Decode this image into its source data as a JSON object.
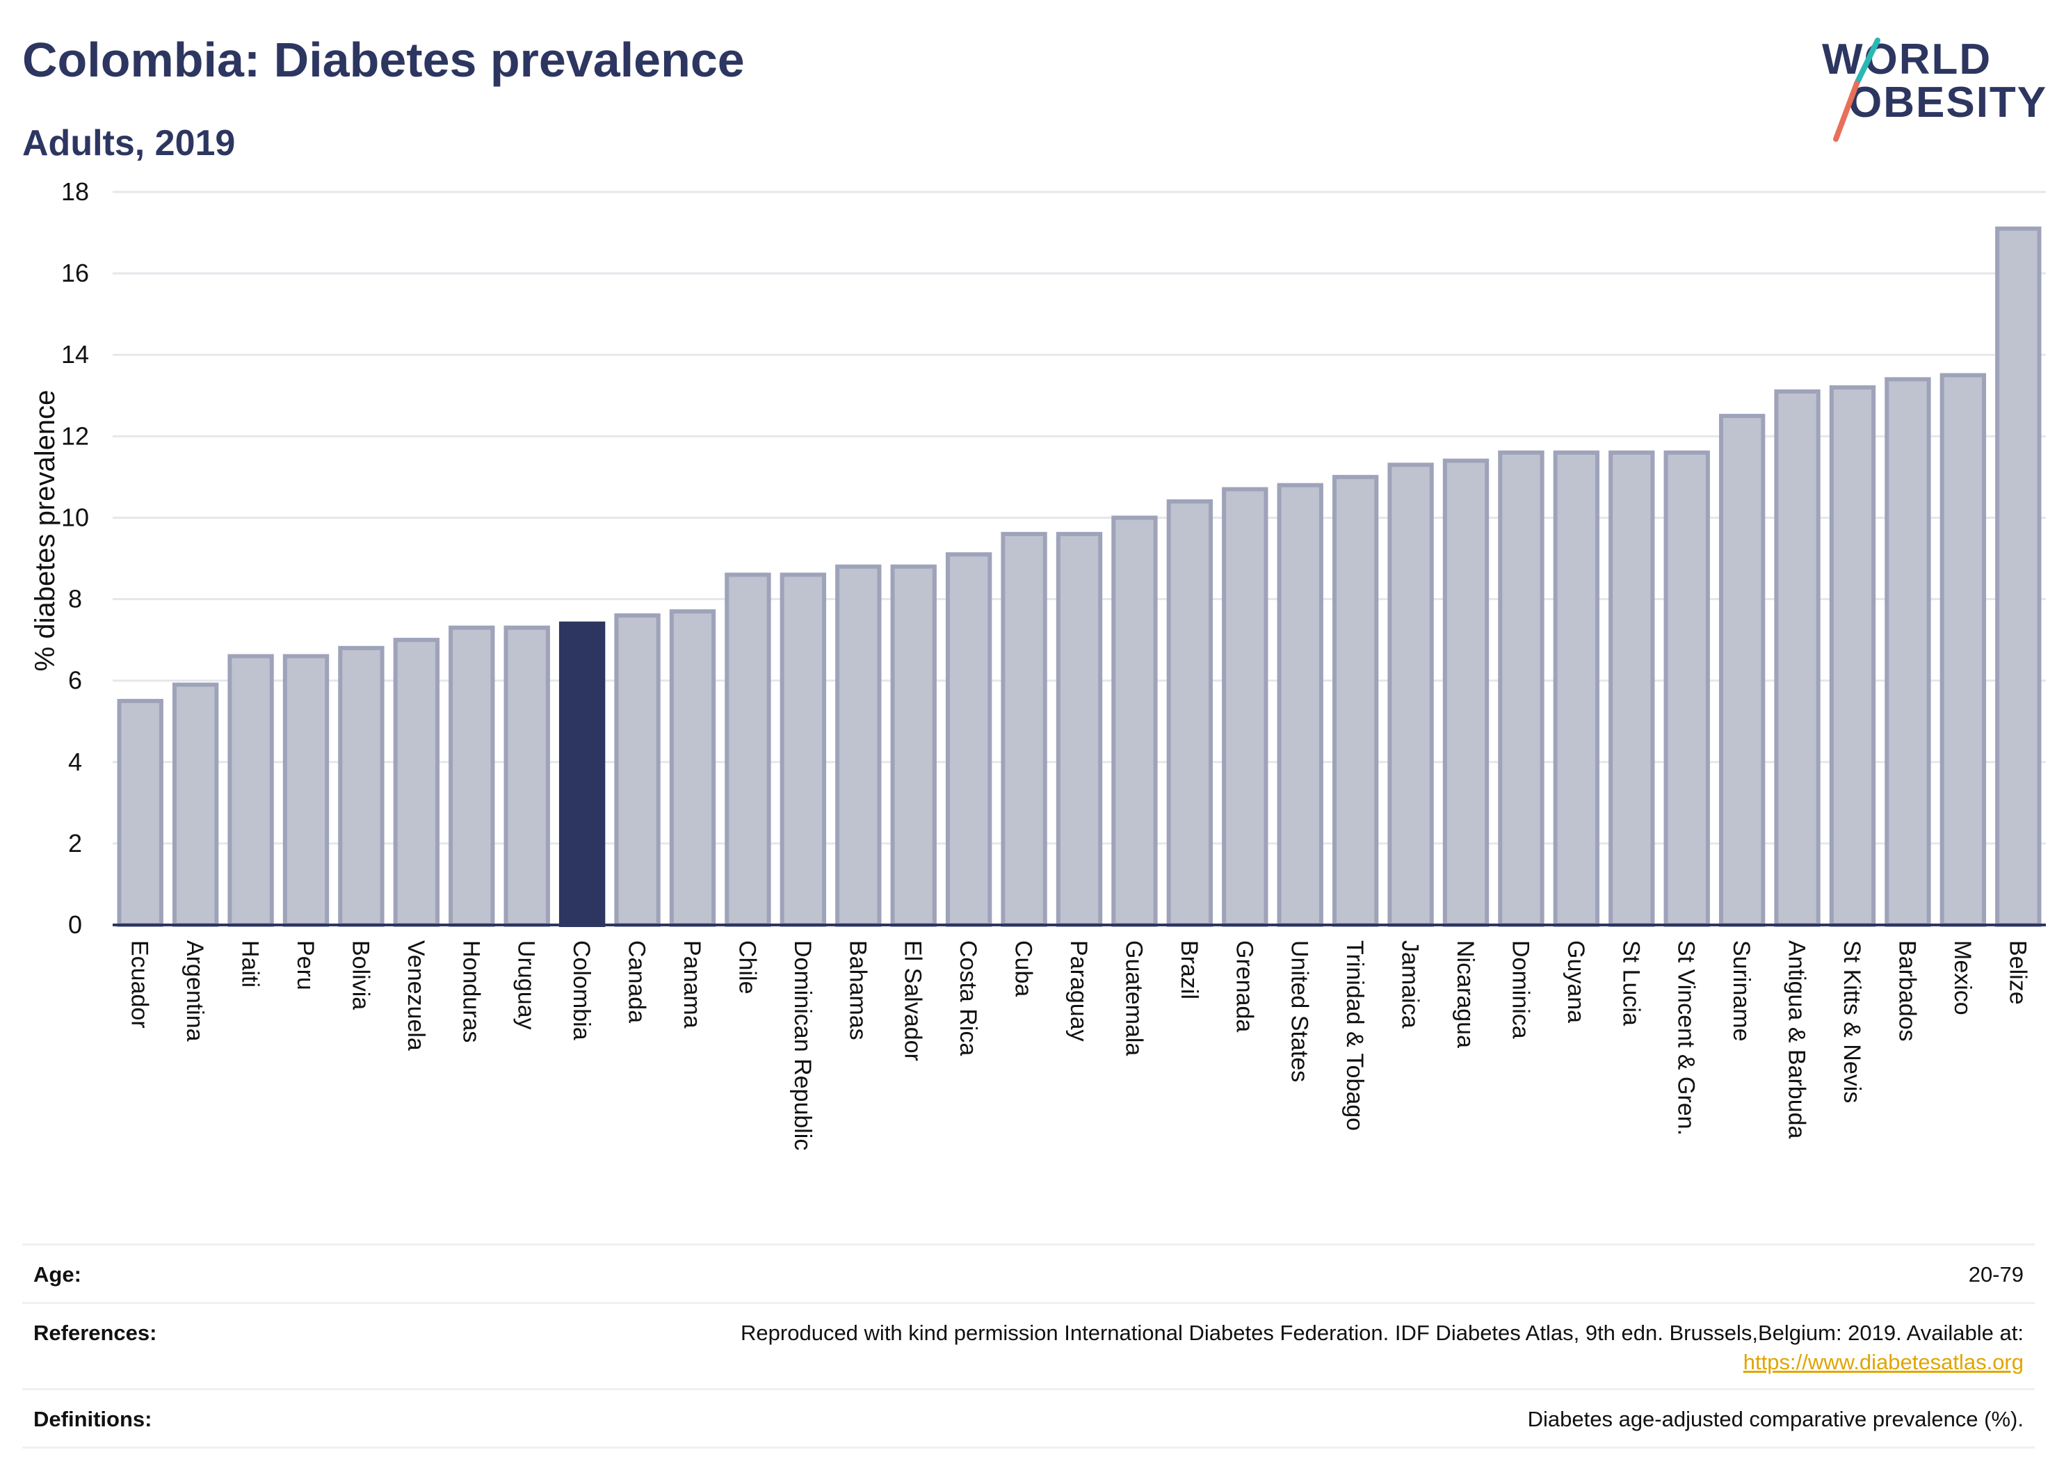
{
  "header": {
    "title": "Colombia: Diabetes prevalence",
    "subtitle": "Adults, 2019"
  },
  "logo": {
    "line1": "WORLD",
    "line2": "OBESITY"
  },
  "chart_data": {
    "type": "bar",
    "ylabel": "% diabetes prevalence",
    "xlabel": "",
    "ylim": [
      0,
      18
    ],
    "yticks": [
      0,
      2,
      4,
      6,
      8,
      10,
      12,
      14,
      16,
      18
    ],
    "grid": true,
    "highlight": "Colombia",
    "colors": {
      "bar": "#bfc2cf",
      "bar_edge": "#9ea3ba",
      "highlight": "#2c3660",
      "grid": "#e5e7eb",
      "axis": "#2c3660"
    },
    "categories": [
      "Ecuador",
      "Argentina",
      "Haiti",
      "Peru",
      "Bolivia",
      "Venezuela",
      "Honduras",
      "Uruguay",
      "Colombia",
      "Canada",
      "Panama",
      "Chile",
      "Dominican Republic",
      "Bahamas",
      "El Salvador",
      "Costa Rica",
      "Cuba",
      "Paraguay",
      "Guatemala",
      "Brazil",
      "Grenada",
      "United States",
      "Trinidad & Tobago",
      "Jamaica",
      "Nicaragua",
      "Dominica",
      "Guyana",
      "St Lucia",
      "St Vincent & Gren.",
      "Suriname",
      "Antigua & Barbuda",
      "St Kitts & Nevis",
      "Barbados",
      "Mexico",
      "Belize"
    ],
    "values": [
      5.5,
      5.9,
      6.6,
      6.6,
      6.8,
      7.0,
      7.3,
      7.3,
      7.4,
      7.6,
      7.7,
      8.6,
      8.6,
      8.8,
      8.8,
      9.1,
      9.6,
      9.6,
      10.0,
      10.4,
      10.7,
      10.8,
      11.0,
      11.3,
      11.4,
      11.6,
      11.6,
      11.6,
      11.6,
      12.5,
      13.1,
      13.2,
      13.4,
      13.5,
      17.1
    ]
  },
  "footer": {
    "age_label": "Age:",
    "age_value": "20-79",
    "references_label": "References:",
    "references_text": "Reproduced with kind permission International Diabetes Federation. IDF Diabetes Atlas, 9th edn. Brussels,Belgium: 2019. Available at:",
    "references_link": "https://www.diabetesatlas.org",
    "definitions_label": "Definitions:",
    "definitions_text": "Diabetes age-adjusted comparative prevalence (%)."
  }
}
